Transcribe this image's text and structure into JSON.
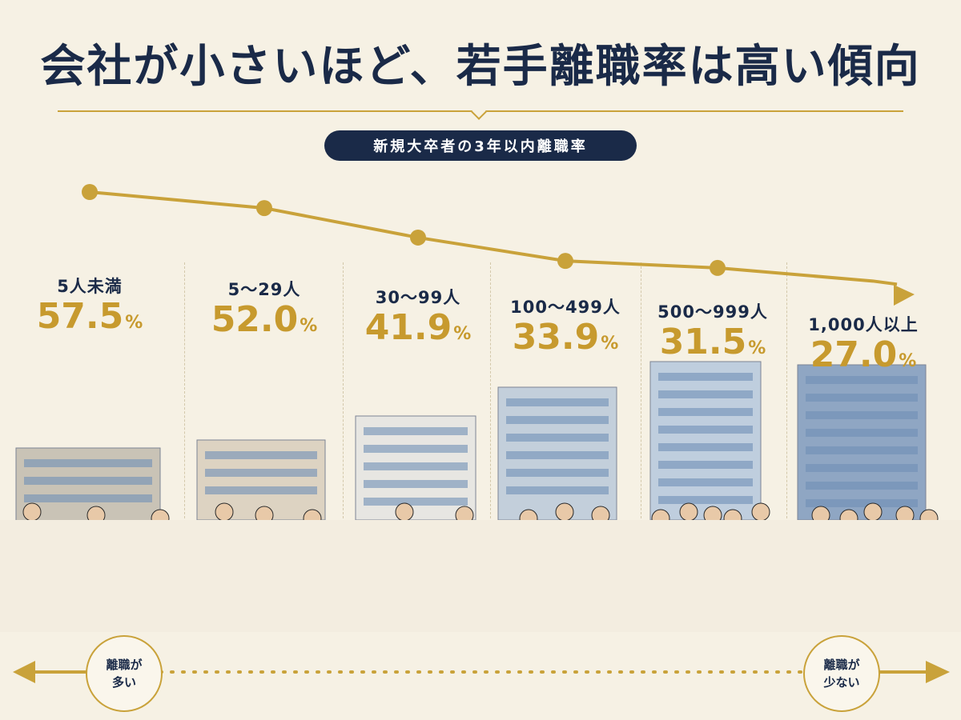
{
  "header": {
    "title": "会社が小さいほど、若手離職率は高い傾向",
    "subtitle": "新規大卒者の3年以内離職率"
  },
  "chart_data": {
    "type": "line",
    "title": "会社が小さいほど、若手離職率は高い傾向",
    "subtitle": "新規大卒者の3年以内離職率",
    "categories": [
      "5人未満",
      "5～29人",
      "30～99人",
      "100～499人",
      "500～999人",
      "1,000人以上"
    ],
    "values": [
      57.5,
      52.0,
      41.9,
      33.9,
      31.5,
      27.0
    ],
    "value_labels": [
      "57.5",
      "52.0",
      "41.9",
      "33.9",
      "31.5",
      "27.0"
    ],
    "unit": "%",
    "ylim": [
      20,
      62
    ],
    "grid": false,
    "legend": "none",
    "colors": {
      "line": "#c9a23a",
      "value": "#c79a2e",
      "label": "#1a2a48"
    }
  },
  "footer": {
    "left_badge": [
      "離職が",
      "多い"
    ],
    "right_badge": [
      "離職が",
      "少ない"
    ]
  },
  "icons": [
    "building-icon",
    "person-icon",
    "arrow-left-icon",
    "arrow-right-icon"
  ]
}
